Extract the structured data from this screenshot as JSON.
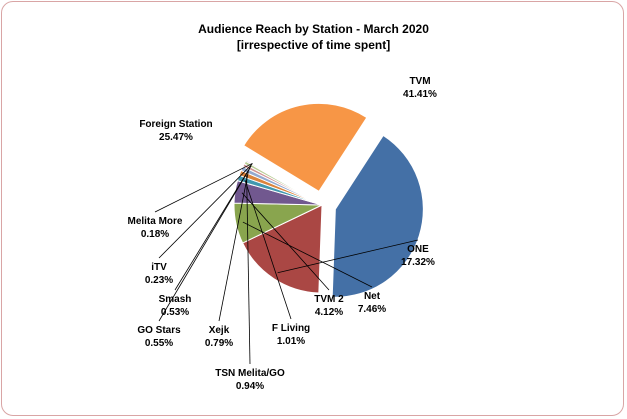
{
  "chart_data": {
    "type": "pie",
    "title": "Audience Reach by Station - March 2020",
    "subtitle": "[irrespective of time spent]",
    "slices": [
      {
        "name": "TVM",
        "value": 41.41,
        "label": "41.41%",
        "color": "#4470a6",
        "exploded": true
      },
      {
        "name": "ONE",
        "value": 17.32,
        "label": "17.32%",
        "color": "#aa4744",
        "exploded": false
      },
      {
        "name": "Net",
        "value": 7.46,
        "label": "7.46%",
        "color": "#89a54e",
        "exploded": false
      },
      {
        "name": "TVM 2",
        "value": 4.12,
        "label": "4.12%",
        "color": "#71588f",
        "exploded": false
      },
      {
        "name": "F Living",
        "value": 1.01,
        "label": "1.01%",
        "color": "#4198af",
        "exploded": false
      },
      {
        "name": "TSN Melita/GO",
        "value": 0.94,
        "label": "0.94%",
        "color": "#db843d",
        "exploded": false
      },
      {
        "name": "Xejk",
        "value": 0.79,
        "label": "0.79%",
        "color": "#93a9cf",
        "exploded": false
      },
      {
        "name": "GO Stars",
        "value": 0.55,
        "label": "0.55%",
        "color": "#d19392",
        "exploded": false
      },
      {
        "name": "Smash",
        "value": 0.53,
        "label": "0.53%",
        "color": "#b9cd96",
        "exploded": false
      },
      {
        "name": "iTV",
        "value": 0.23,
        "label": "0.23%",
        "color": "#a99bbd",
        "exploded": false
      },
      {
        "name": "Melita More",
        "value": 0.18,
        "label": "0.18%",
        "color": "#91c3d5",
        "exploded": false
      },
      {
        "name": "Foreign Station",
        "value": 25.47,
        "label": "25.47%",
        "color": "#f79646",
        "exploded": true
      }
    ]
  }
}
